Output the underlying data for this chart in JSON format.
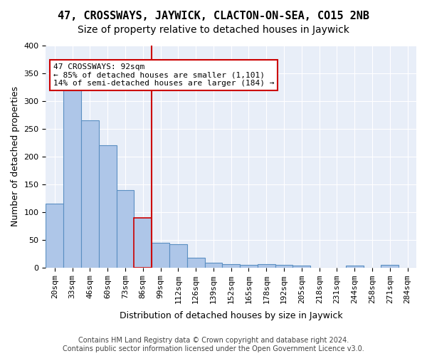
{
  "title": "47, CROSSWAYS, JAYWICK, CLACTON-ON-SEA, CO15 2NB",
  "subtitle": "Size of property relative to detached houses in Jaywick",
  "xlabel": "Distribution of detached houses by size in Jaywick",
  "ylabel": "Number of detached properties",
  "bin_labels": [
    "20sqm",
    "33sqm",
    "46sqm",
    "60sqm",
    "73sqm",
    "86sqm",
    "99sqm",
    "112sqm",
    "126sqm",
    "139sqm",
    "152sqm",
    "165sqm",
    "178sqm",
    "192sqm",
    "205sqm",
    "218sqm",
    "231sqm",
    "244sqm",
    "258sqm",
    "271sqm",
    "284sqm"
  ],
  "bar_heights": [
    115,
    330,
    265,
    220,
    140,
    90,
    45,
    42,
    18,
    9,
    6,
    5,
    6,
    5,
    3,
    0,
    0,
    4,
    0,
    5,
    0
  ],
  "bar_color": "#aec6e8",
  "bar_edge_color": "#5a8fc2",
  "highlight_bar_index": 5,
  "highlight_bar_edge_color": "#cc0000",
  "vline_color": "#cc0000",
  "annotation_text": "47 CROSSWAYS: 92sqm\n← 85% of detached houses are smaller (1,101)\n14% of semi-detached houses are larger (184) →",
  "annotation_box_color": "#ffffff",
  "annotation_box_edge_color": "#cc0000",
  "ylim": [
    0,
    400
  ],
  "yticks": [
    0,
    50,
    100,
    150,
    200,
    250,
    300,
    350,
    400
  ],
  "footer": "Contains HM Land Registry data © Crown copyright and database right 2024.\nContains public sector information licensed under the Open Government Licence v3.0.",
  "title_fontsize": 11,
  "subtitle_fontsize": 10,
  "axis_fontsize": 9,
  "tick_fontsize": 8,
  "footer_fontsize": 7,
  "annotation_fontsize": 8,
  "bg_color": "#e8eef8"
}
